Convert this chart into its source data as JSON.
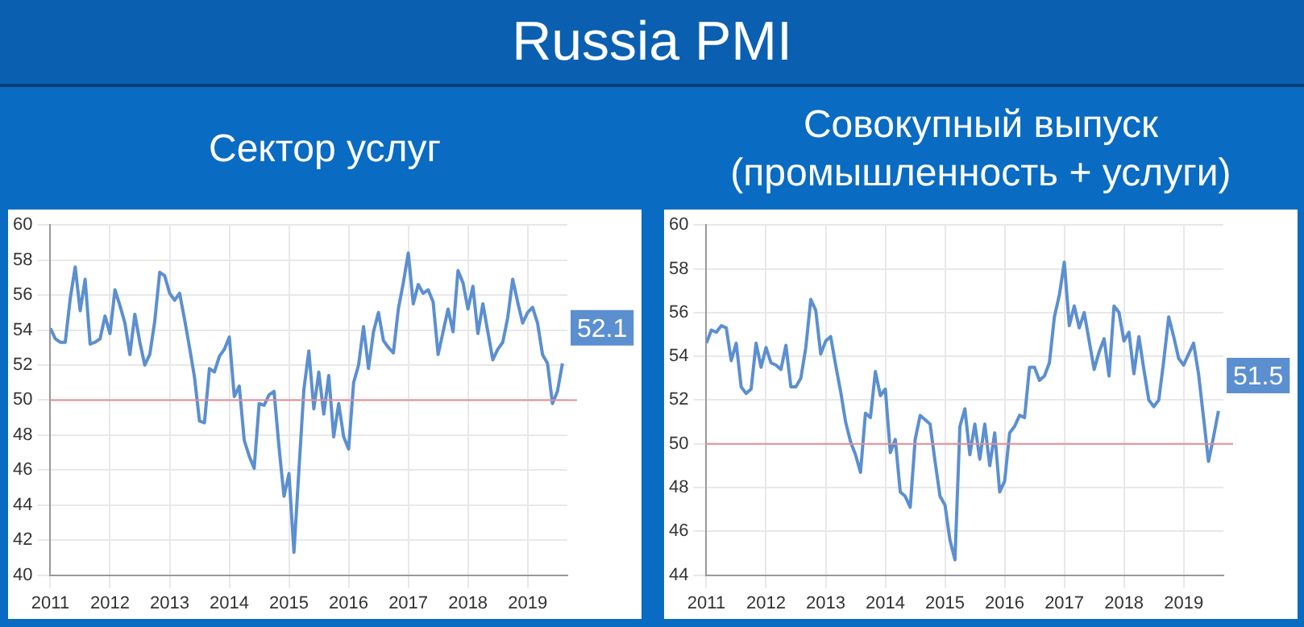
{
  "chart_data": [
    {
      "type": "line",
      "title": "Russia PMI",
      "subtitle": "Сектор услуг",
      "x": [
        "2011-01",
        "2011-02",
        "2011-03",
        "2011-04",
        "2011-05",
        "2011-06",
        "2011-07",
        "2011-08",
        "2011-09",
        "2011-10",
        "2011-11",
        "2011-12",
        "2012-01",
        "2012-02",
        "2012-03",
        "2012-04",
        "2012-05",
        "2012-06",
        "2012-07",
        "2012-08",
        "2012-09",
        "2012-10",
        "2012-11",
        "2012-12",
        "2013-01",
        "2013-02",
        "2013-03",
        "2013-04",
        "2013-05",
        "2013-06",
        "2013-07",
        "2013-08",
        "2013-09",
        "2013-10",
        "2013-11",
        "2013-12",
        "2014-01",
        "2014-02",
        "2014-03",
        "2014-04",
        "2014-05",
        "2014-06",
        "2014-07",
        "2014-08",
        "2014-09",
        "2014-10",
        "2014-11",
        "2014-12",
        "2015-01",
        "2015-02",
        "2015-03",
        "2015-04",
        "2015-05",
        "2015-06",
        "2015-07",
        "2015-08",
        "2015-09",
        "2015-10",
        "2015-11",
        "2015-12",
        "2016-01",
        "2016-02",
        "2016-03",
        "2016-04",
        "2016-05",
        "2016-06",
        "2016-07",
        "2016-08",
        "2016-09",
        "2016-10",
        "2016-11",
        "2016-12",
        "2017-01",
        "2017-02",
        "2017-03",
        "2017-04",
        "2017-05",
        "2017-06",
        "2017-07",
        "2017-08",
        "2017-09",
        "2017-10",
        "2017-11",
        "2017-12",
        "2018-01",
        "2018-02",
        "2018-03",
        "2018-04",
        "2018-05",
        "2018-06",
        "2018-07",
        "2018-08",
        "2018-09",
        "2018-10",
        "2018-11",
        "2018-12",
        "2019-01",
        "2019-02",
        "2019-03",
        "2019-04",
        "2019-05",
        "2019-06",
        "2019-07",
        "2019-08"
      ],
      "series": [
        {
          "color": "#5b8fd0",
          "values": [
            54.1,
            53.5,
            53.3,
            53.3,
            55.8,
            57.6,
            55.1,
            56.9,
            53.2,
            53.3,
            53.5,
            54.8,
            53.8,
            56.3,
            55.4,
            54.4,
            52.6,
            54.9,
            53.3,
            52.0,
            52.6,
            54.5,
            57.3,
            57.1,
            56.1,
            55.7,
            56.1,
            54.6,
            53.0,
            51.3,
            48.8,
            48.7,
            51.8,
            51.6,
            52.5,
            52.9,
            53.6,
            50.2,
            50.8,
            47.7,
            46.8,
            46.1,
            49.8,
            49.7,
            50.3,
            50.5,
            47.3,
            44.5,
            45.8,
            41.3,
            46.0,
            50.6,
            52.8,
            49.5,
            51.6,
            49.2,
            51.4,
            47.9,
            49.8,
            47.9,
            47.2,
            51.0,
            52.0,
            54.2,
            51.8,
            53.9,
            55.0,
            53.4,
            53.0,
            52.7,
            55.2,
            56.7,
            58.4,
            55.5,
            56.6,
            56.1,
            56.3,
            55.6,
            52.6,
            53.9,
            55.2,
            53.9,
            57.4,
            56.7,
            55.2,
            56.5,
            53.8,
            55.5,
            53.9,
            52.3,
            52.9,
            53.3,
            54.7,
            56.9,
            55.6,
            54.4,
            55.0,
            55.3,
            54.4,
            52.6,
            52.1,
            49.8,
            50.5,
            52.1
          ],
          "value_labels": [
            null,
            null,
            null,
            null,
            null,
            null,
            null,
            null,
            null,
            null,
            null,
            null,
            null,
            null,
            null,
            null,
            null,
            null,
            null,
            null,
            null,
            null,
            null,
            null,
            null,
            null,
            null,
            null,
            null,
            null,
            null,
            null,
            null,
            null,
            null,
            null,
            null,
            null,
            null,
            null,
            null,
            null,
            null,
            null,
            null,
            null,
            null,
            null,
            null,
            null,
            null,
            null,
            null,
            null,
            null,
            null,
            null,
            null,
            null,
            null,
            null,
            null,
            null,
            null,
            null,
            null,
            null,
            null,
            null,
            null,
            null,
            null,
            null,
            null,
            null,
            null,
            null,
            null,
            null,
            null,
            null,
            null,
            null,
            null,
            null,
            null,
            null,
            null,
            null,
            null,
            null,
            null,
            null,
            null,
            null,
            null,
            null,
            null,
            null,
            null,
            null,
            null,
            null,
            "52.1"
          ]
        }
      ],
      "xlim": [
        "2011-01",
        "2019-09"
      ],
      "xticks": [
        "2011",
        "2012",
        "2013",
        "2014",
        "2015",
        "2016",
        "2017",
        "2018",
        "2019"
      ],
      "ylim": [
        40,
        60
      ],
      "yticks": [
        40,
        42,
        44,
        46,
        48,
        50,
        52,
        54,
        56,
        58,
        60
      ],
      "grid": true,
      "legend": false,
      "marker": "none",
      "line_style": "solid",
      "ref_lines": [
        {
          "axis": "y",
          "value": 50,
          "color": "#e58e96"
        }
      ]
    },
    {
      "type": "line",
      "subtitle": "Совокупный выпуск (промышленность + услуги)",
      "x": [
        "2011-01",
        "2011-02",
        "2011-03",
        "2011-04",
        "2011-05",
        "2011-06",
        "2011-07",
        "2011-08",
        "2011-09",
        "2011-10",
        "2011-11",
        "2011-12",
        "2012-01",
        "2012-02",
        "2012-03",
        "2012-04",
        "2012-05",
        "2012-06",
        "2012-07",
        "2012-08",
        "2012-09",
        "2012-10",
        "2012-11",
        "2012-12",
        "2013-01",
        "2013-02",
        "2013-03",
        "2013-04",
        "2013-05",
        "2013-06",
        "2013-07",
        "2013-08",
        "2013-09",
        "2013-10",
        "2013-11",
        "2013-12",
        "2014-01",
        "2014-02",
        "2014-03",
        "2014-04",
        "2014-05",
        "2014-06",
        "2014-07",
        "2014-08",
        "2014-09",
        "2014-10",
        "2014-11",
        "2014-12",
        "2015-01",
        "2015-02",
        "2015-03",
        "2015-04",
        "2015-05",
        "2015-06",
        "2015-07",
        "2015-08",
        "2015-09",
        "2015-10",
        "2015-11",
        "2015-12",
        "2016-01",
        "2016-02",
        "2016-03",
        "2016-04",
        "2016-05",
        "2016-06",
        "2016-07",
        "2016-08",
        "2016-09",
        "2016-10",
        "2016-11",
        "2016-12",
        "2017-01",
        "2017-02",
        "2017-03",
        "2017-04",
        "2017-05",
        "2017-06",
        "2017-07",
        "2017-08",
        "2017-09",
        "2017-10",
        "2017-11",
        "2017-12",
        "2018-01",
        "2018-02",
        "2018-03",
        "2018-04",
        "2018-05",
        "2018-06",
        "2018-07",
        "2018-08",
        "2018-09",
        "2018-10",
        "2018-11",
        "2018-12",
        "2019-01",
        "2019-02",
        "2019-03",
        "2019-04",
        "2019-05",
        "2019-06",
        "2019-07",
        "2019-08"
      ],
      "series": [
        {
          "color": "#5b8fd0",
          "values": [
            54.6,
            55.2,
            55.1,
            55.4,
            55.3,
            53.8,
            54.6,
            52.6,
            52.3,
            52.5,
            54.6,
            53.5,
            54.4,
            53.7,
            53.6,
            53.4,
            54.5,
            52.6,
            52.6,
            53.0,
            54.4,
            56.6,
            56.1,
            54.1,
            54.7,
            54.9,
            53.6,
            52.4,
            51.0,
            50.1,
            49.5,
            48.7,
            51.4,
            51.2,
            53.3,
            52.2,
            52.5,
            49.6,
            50.2,
            47.8,
            47.6,
            47.1,
            50.2,
            51.3,
            51.1,
            50.9,
            49.2,
            47.6,
            47.2,
            45.6,
            44.7,
            50.8,
            51.6,
            49.5,
            50.9,
            49.3,
            50.9,
            49.0,
            50.5,
            47.8,
            48.3,
            50.5,
            50.8,
            51.3,
            51.2,
            53.5,
            53.5,
            52.9,
            53.1,
            53.7,
            55.8,
            56.8,
            58.3,
            55.4,
            56.3,
            55.3,
            56.0,
            54.7,
            53.4,
            54.2,
            54.8,
            53.1,
            56.3,
            56.0,
            54.7,
            55.1,
            53.2,
            54.9,
            53.4,
            52.0,
            51.7,
            52.0,
            53.8,
            55.8,
            54.9,
            53.9,
            53.6,
            54.1,
            54.6,
            53.2,
            51.2,
            49.2,
            50.3,
            51.5
          ],
          "value_labels": [
            null,
            null,
            null,
            null,
            null,
            null,
            null,
            null,
            null,
            null,
            null,
            null,
            null,
            null,
            null,
            null,
            null,
            null,
            null,
            null,
            null,
            null,
            null,
            null,
            null,
            null,
            null,
            null,
            null,
            null,
            null,
            null,
            null,
            null,
            null,
            null,
            null,
            null,
            null,
            null,
            null,
            null,
            null,
            null,
            null,
            null,
            null,
            null,
            null,
            null,
            null,
            null,
            null,
            null,
            null,
            null,
            null,
            null,
            null,
            null,
            null,
            null,
            null,
            null,
            null,
            null,
            null,
            null,
            null,
            null,
            null,
            null,
            null,
            null,
            null,
            null,
            null,
            null,
            null,
            null,
            null,
            null,
            null,
            null,
            null,
            null,
            null,
            null,
            null,
            null,
            null,
            null,
            null,
            null,
            null,
            null,
            null,
            null,
            null,
            null,
            null,
            null,
            null,
            "51.5"
          ]
        }
      ],
      "xlim": [
        "2011-01",
        "2019-09"
      ],
      "xticks": [
        "2011",
        "2012",
        "2013",
        "2014",
        "2015",
        "2016",
        "2017",
        "2018",
        "2019"
      ],
      "ylim": [
        44,
        60
      ],
      "yticks": [
        44,
        46,
        48,
        50,
        52,
        54,
        56,
        58,
        60
      ],
      "grid": true,
      "legend": false,
      "marker": "none",
      "line_style": "solid",
      "ref_lines": [
        {
          "axis": "y",
          "value": 50,
          "color": "#e58e96"
        }
      ]
    }
  ]
}
